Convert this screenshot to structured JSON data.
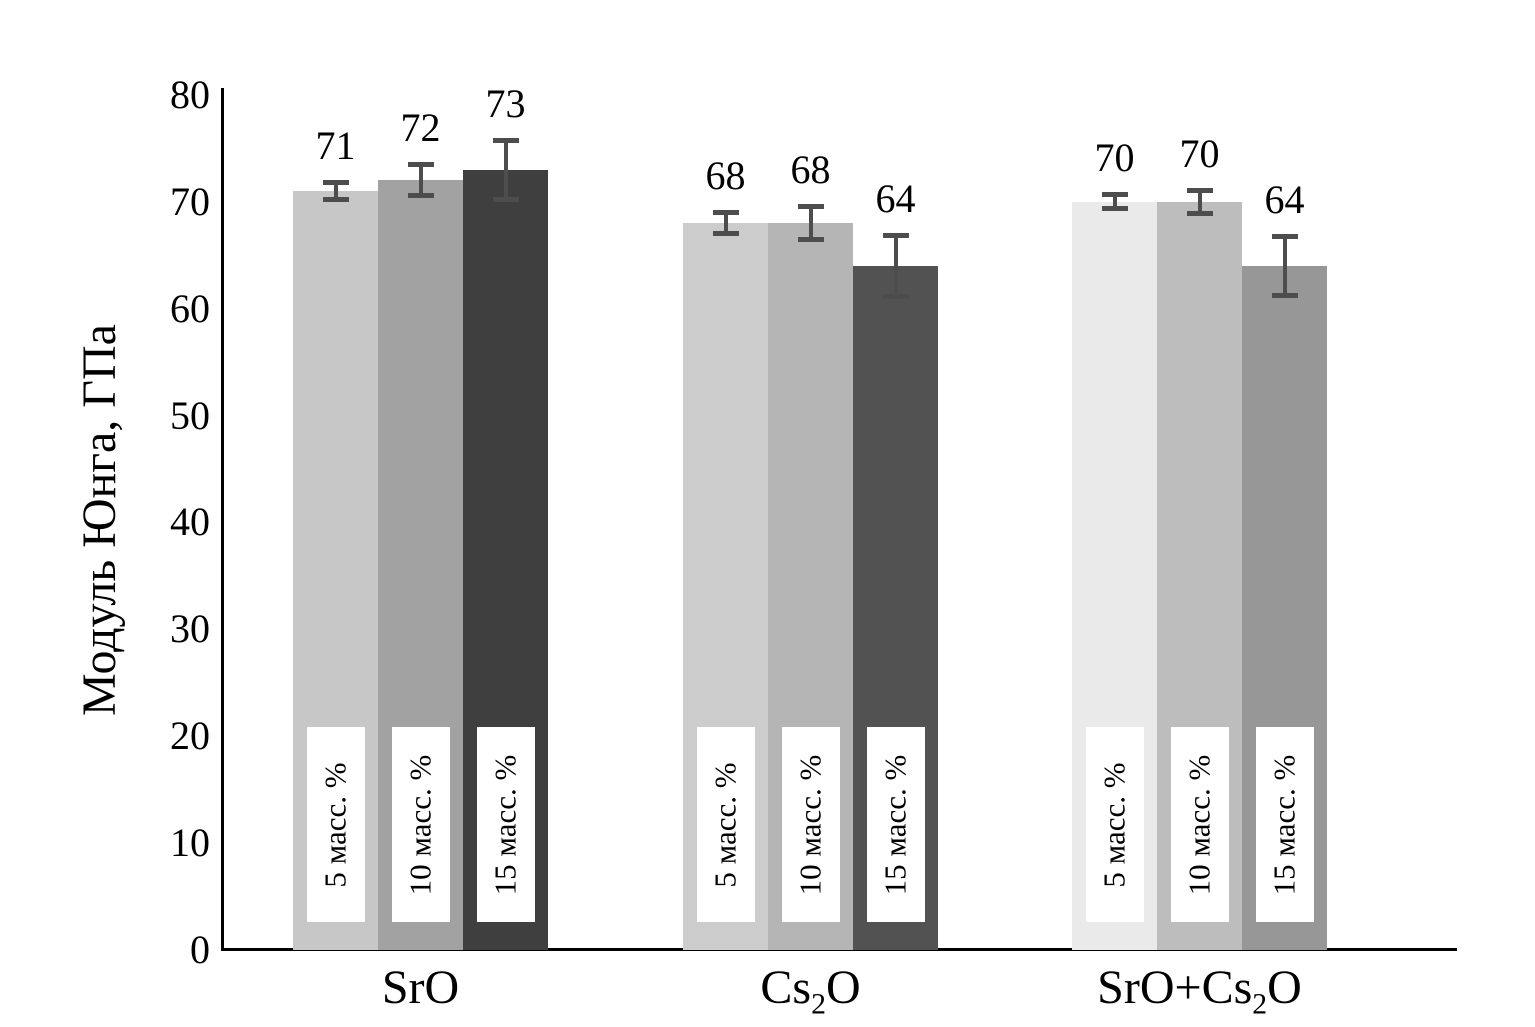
{
  "page": {
    "background_color": "#ffffff",
    "text_color": "#000000"
  },
  "chart_data": {
    "type": "bar",
    "title": "",
    "ylabel": "Модуль Юнга, ГПа",
    "xlabel": "",
    "ylim": [
      0,
      80
    ],
    "yticks": [
      0,
      10,
      20,
      30,
      40,
      50,
      60,
      70,
      80
    ],
    "grid": false,
    "legend_position": "labels-inside-bars",
    "categories": [
      "SrO",
      "Cs2O",
      "SrO+Cs2O"
    ],
    "category_parts": [
      [
        {
          "text": "SrO"
        }
      ],
      [
        {
          "text": "Cs"
        },
        {
          "sub": "2"
        },
        {
          "text": "O"
        }
      ],
      [
        {
          "text": "SrO+Cs"
        },
        {
          "sub": "2"
        },
        {
          "text": "O"
        }
      ]
    ],
    "series": [
      {
        "name": "5 масс. %",
        "values": [
          71,
          68,
          70
        ],
        "errors": [
          1.0,
          1.2,
          0.9
        ],
        "colors": [
          "#c7c7c7",
          "#cccccc",
          "#eaeaea"
        ]
      },
      {
        "name": "10 масс. %",
        "values": [
          72,
          68,
          70
        ],
        "errors": [
          1.7,
          1.8,
          1.3
        ],
        "colors": [
          "#a2a2a2",
          "#b5b5b5",
          "#bdbdbd"
        ]
      },
      {
        "name": "15 масс. %",
        "values": [
          73,
          64,
          64
        ],
        "errors": [
          3.0,
          3.1,
          3.0
        ],
        "colors": [
          "#3f3f3f",
          "#525252",
          "#979797"
        ]
      }
    ],
    "bar_value_labels_shown": true,
    "error_bar_color": "#4d4d4d",
    "axis_color": "#000000",
    "series_label_box_color": "#ffffff"
  }
}
